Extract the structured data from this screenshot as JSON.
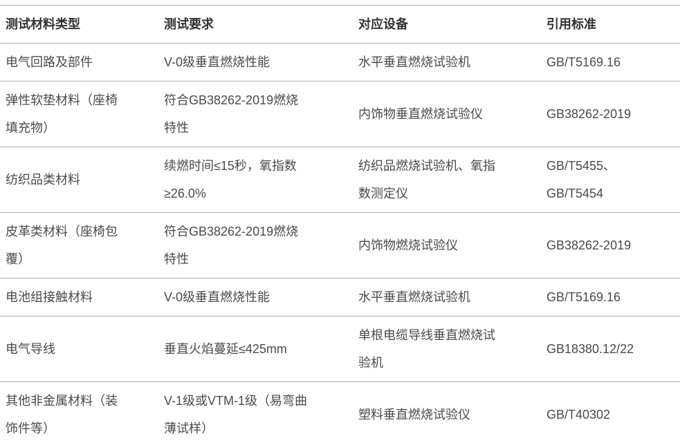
{
  "table": {
    "headers": [
      "测试材料类型",
      "测试要求",
      "对应设备",
      "引用标准"
    ],
    "rows": [
      [
        "电气回路及部件",
        "V-0级垂直燃烧性能",
        "水平垂直燃烧试验机",
        "GB/T5169.16"
      ],
      [
        "弹性软垫材料（座椅\n填充物）",
        "符合GB38262-2019燃烧\n特性",
        "内饰物垂直燃烧试验仪",
        "GB38262-2019"
      ],
      [
        "纺织品类材料",
        "续燃时间≤15秒，氧指数\n≥26.0%",
        "纺织品燃烧试验机、氧指\n数测定仪",
        "GB/T5455、\nGB/T5454"
      ],
      [
        "皮革类材料（座椅包\n覆）",
        "符合GB38262-2019燃烧\n特性",
        "内饰物燃烧试验仪",
        "GB38262-2019"
      ],
      [
        "电池组接触材料",
        "V-0级垂直燃烧性能",
        "水平垂直燃烧试验机",
        "GB/T5169.16"
      ],
      [
        "电气导线",
        "垂直火焰蔓延≤425mm",
        "单根电缆导线垂直燃烧试\n验机",
        "GB18380.12/22"
      ],
      [
        "其他非金属材料（装\n饰件等）",
        "V-1级或VTM-1级（易弯曲\n薄试样）",
        "塑料垂直燃烧试验仪",
        "GB/T40302"
      ]
    ],
    "colors": {
      "header_text": "#333333",
      "body_text": "#4a4a4a",
      "border": "#b1b1b1"
    }
  }
}
